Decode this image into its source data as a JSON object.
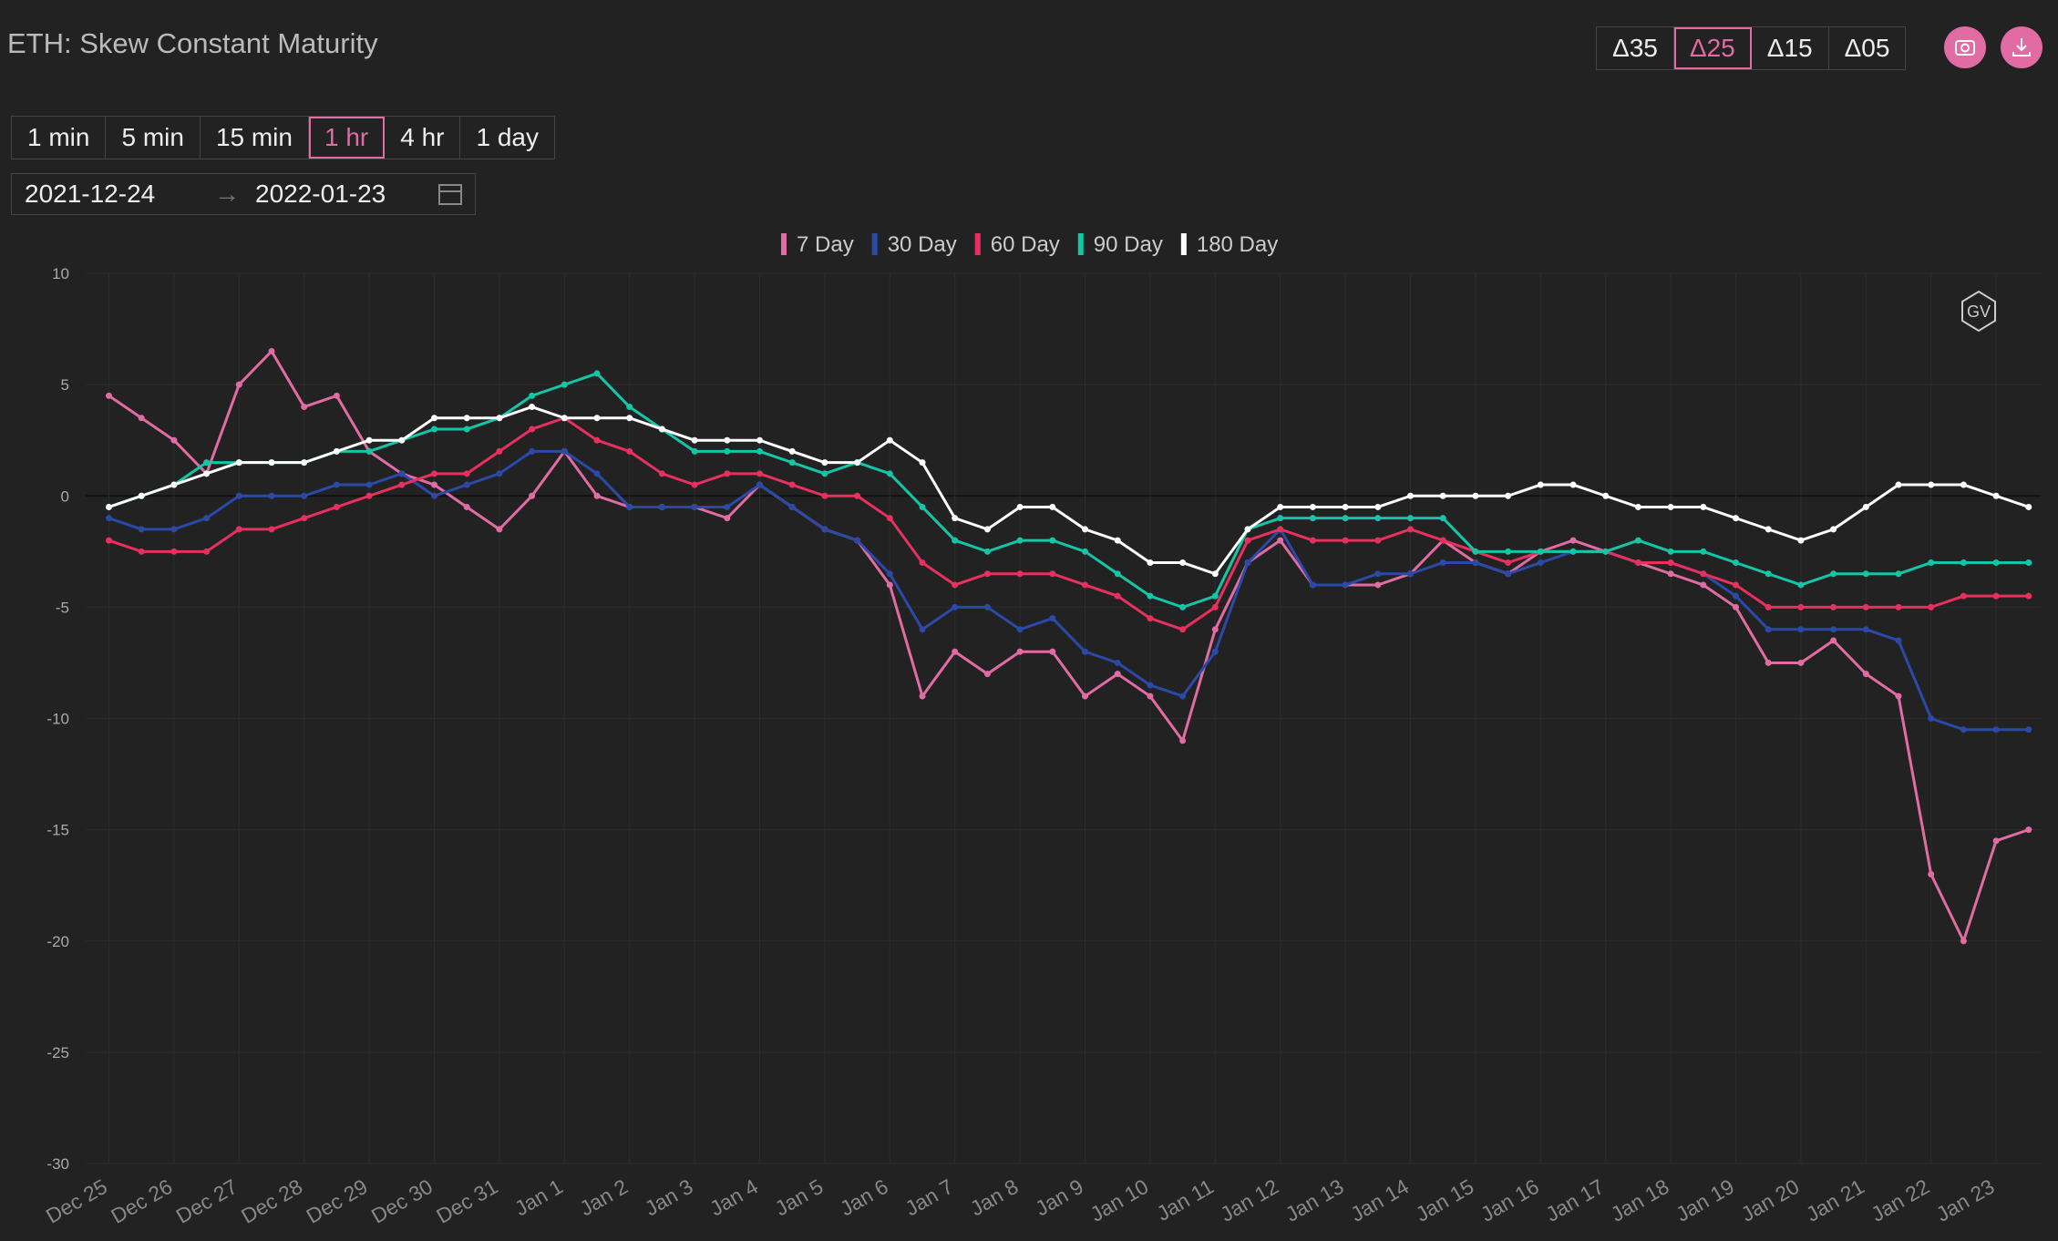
{
  "header": {
    "title": "ETH: Skew Constant Maturity",
    "deltas": [
      "Δ35",
      "Δ25",
      "Δ15",
      "Δ05"
    ],
    "selected_delta": 1,
    "intervals": [
      "1 min",
      "5 min",
      "15 min",
      "1 hr",
      "4 hr",
      "1 day"
    ],
    "selected_interval": 3,
    "date_start": "2021-12-24",
    "date_end": "2022-01-23"
  },
  "chart_data": {
    "type": "line",
    "watermark": "GV",
    "categories": [
      "Dec 25",
      null,
      "Dec 26",
      null,
      "Dec 27",
      null,
      "Dec 28",
      null,
      "Dec 29",
      null,
      "Dec 30",
      null,
      "Dec 31",
      null,
      "Jan 1",
      null,
      "Jan 2",
      null,
      "Jan 3",
      null,
      "Jan 4",
      null,
      "Jan 5",
      null,
      "Jan 6",
      null,
      "Jan 7",
      null,
      "Jan 8",
      null,
      "Jan 9",
      null,
      "Jan 10",
      null,
      "Jan 11",
      null,
      "Jan 12",
      null,
      "Jan 13",
      null,
      "Jan 14",
      null,
      "Jan 15",
      null,
      "Jan 16",
      null,
      "Jan 17",
      null,
      "Jan 18",
      null,
      "Jan 19",
      null,
      "Jan 20",
      null,
      "Jan 21",
      null,
      "Jan 22",
      null,
      "Jan 23",
      null
    ],
    "series": [
      {
        "name": "7 Day",
        "color": "#e06ca3",
        "values": [
          4.5,
          3.5,
          2.5,
          1,
          5,
          6.5,
          4,
          4.5,
          2,
          1,
          0.5,
          -0.5,
          -1.5,
          0,
          2,
          0,
          -0.5,
          -0.5,
          -0.5,
          -1,
          0.5,
          -0.5,
          -1.5,
          -2,
          -4,
          -9,
          -7,
          -8,
          -7,
          -7,
          -9,
          -8,
          -9,
          -11,
          -6,
          -3,
          -2,
          -4,
          -4,
          -4,
          -3.5,
          -2,
          -3,
          -3.5,
          -2.5,
          -2,
          -2.5,
          -3,
          -3.5,
          -4,
          -5,
          -7.5,
          -7.5,
          -6.5,
          -8,
          -9,
          -17,
          -20,
          -15.5,
          -15
        ]
      },
      {
        "name": "30 Day",
        "color": "#2b4aa8",
        "values": [
          -1,
          -1.5,
          -1.5,
          -1,
          0,
          0,
          0,
          0.5,
          0.5,
          1,
          0,
          0.5,
          1,
          2,
          2,
          1,
          -0.5,
          -0.5,
          -0.5,
          -0.5,
          0.5,
          -0.5,
          -1.5,
          -2,
          -3.5,
          -6,
          -5,
          -5,
          -6,
          -5.5,
          -7,
          -7.5,
          -8.5,
          -9,
          -7,
          -3,
          -1.5,
          -4,
          -4,
          -3.5,
          -3.5,
          -3,
          -3,
          -3.5,
          -3,
          -2.5,
          -2.5,
          -3,
          -3,
          -3.5,
          -4.5,
          -6,
          -6,
          -6,
          -6,
          -6.5,
          -10,
          -10.5,
          -10.5,
          -10.5
        ]
      },
      {
        "name": "60 Day",
        "color": "#e8305f",
        "values": [
          -2,
          -2.5,
          -2.5,
          -2.5,
          -1.5,
          -1.5,
          -1,
          -0.5,
          0,
          0.5,
          1,
          1,
          2,
          3,
          3.5,
          2.5,
          2,
          1,
          0.5,
          1,
          1,
          0.5,
          0,
          0,
          -1,
          -3,
          -4,
          -3.5,
          -3.5,
          -3.5,
          -4,
          -4.5,
          -5.5,
          -6,
          -5,
          -2,
          -1.5,
          -2,
          -2,
          -2,
          -1.5,
          -2,
          -2.5,
          -3,
          -2.5,
          -2.5,
          -2.5,
          -3,
          -3,
          -3.5,
          -4,
          -5,
          -5,
          -5,
          -5,
          -5,
          -5,
          -4.5,
          -4.5,
          -4.5
        ]
      },
      {
        "name": "90 Day",
        "color": "#14c6a8",
        "values": [
          -0.5,
          0,
          0.5,
          1.5,
          1.5,
          1.5,
          1.5,
          2,
          2,
          2.5,
          3,
          3,
          3.5,
          4.5,
          5,
          5.5,
          4,
          3,
          2,
          2,
          2,
          1.5,
          1,
          1.5,
          1,
          -0.5,
          -2,
          -2.5,
          -2,
          -2,
          -2.5,
          -3.5,
          -4.5,
          -5,
          -4.5,
          -1.5,
          -1,
          -1,
          -1,
          -1,
          -1,
          -1,
          -2.5,
          -2.5,
          -2.5,
          -2.5,
          -2.5,
          -2,
          -2.5,
          -2.5,
          -3,
          -3.5,
          -4,
          -3.5,
          -3.5,
          -3.5,
          -3,
          -3,
          -3,
          -3
        ]
      },
      {
        "name": "180 Day",
        "color": "#ffffff",
        "values": [
          -0.5,
          0,
          0.5,
          1,
          1.5,
          1.5,
          1.5,
          2,
          2.5,
          2.5,
          3.5,
          3.5,
          3.5,
          4,
          3.5,
          3.5,
          3.5,
          3,
          2.5,
          2.5,
          2.5,
          2,
          1.5,
          1.5,
          2.5,
          1.5,
          -1,
          -1.5,
          -0.5,
          -0.5,
          -1.5,
          -2,
          -3,
          -3,
          -3.5,
          -1.5,
          -0.5,
          -0.5,
          -0.5,
          -0.5,
          0,
          0,
          0,
          0,
          0.5,
          0.5,
          0,
          -0.5,
          -0.5,
          -0.5,
          -1,
          -1.5,
          -2,
          -1.5,
          -0.5,
          0.5,
          0.5,
          0.5,
          0,
          -0.5
        ]
      }
    ],
    "ylim": [
      -30,
      10
    ],
    "yticks": [
      10,
      5,
      0,
      -5,
      -10,
      -15,
      -20,
      -25,
      -30
    ],
    "grid": true
  }
}
